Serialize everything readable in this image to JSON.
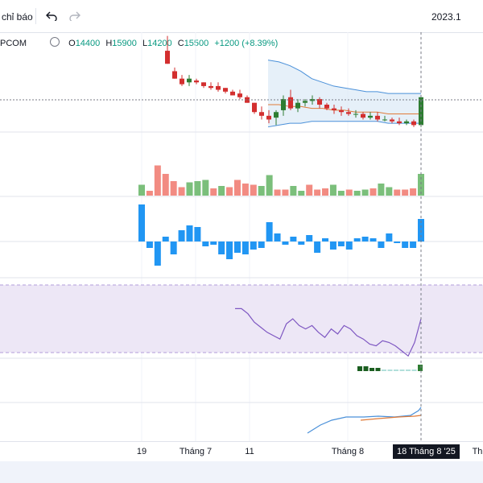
{
  "toolbar": {
    "indicators_label": "chỉ báo",
    "undo_icon": "undo-icon",
    "redo_icon": "redo-icon",
    "period_label": "2023.1"
  },
  "legend": {
    "symbol": "PCOM",
    "open_label": "O",
    "open_value": "14400",
    "high_label": "H",
    "high_value": "15900",
    "low_label": "L",
    "low_value": "14200",
    "close_label": "C",
    "close_value": "15500",
    "change": "+1200 (+8.39%)",
    "marker_icon": "circle-marker-icon"
  },
  "xaxis": {
    "ticks": [
      "19",
      "Tháng 7",
      "11",
      "Tháng 8",
      "Th"
    ],
    "crosshair_date": "18 Tháng 8 '25"
  },
  "colors": {
    "up": "#089981",
    "down": "#f23645",
    "up_candle": "#2e7d32",
    "down_candle": "#d32f2f",
    "vol_up": "#7bbf7b",
    "vol_down": "#f28b82",
    "macd_bar": "#2196f3",
    "rsi_line": "#7e57c2",
    "rsi_band": "#ede7f6",
    "bb_line": "#4a90d9",
    "bb_fill": "#dbe9f7",
    "ma_line": "#e07b39"
  },
  "chart_data": {
    "type": "candlestick",
    "title": "PCOM",
    "candles": [
      {
        "o": 16800,
        "h": 17600,
        "l": 16100,
        "c": 16100
      },
      {
        "o": 15700,
        "h": 15900,
        "l": 15300,
        "c": 15300
      },
      {
        "o": 15300,
        "h": 15500,
        "l": 14900,
        "c": 15000
      },
      {
        "o": 15100,
        "h": 15500,
        "l": 14900,
        "c": 15300
      },
      {
        "o": 15200,
        "h": 15300,
        "l": 15000,
        "c": 15100
      },
      {
        "o": 15100,
        "h": 15100,
        "l": 14800,
        "c": 14900
      },
      {
        "o": 14900,
        "h": 15100,
        "l": 14700,
        "c": 14800
      },
      {
        "o": 14900,
        "h": 15100,
        "l": 14600,
        "c": 14700
      },
      {
        "o": 14800,
        "h": 14800,
        "l": 14500,
        "c": 14600
      },
      {
        "o": 14600,
        "h": 14700,
        "l": 14400,
        "c": 14400
      },
      {
        "o": 14500,
        "h": 14700,
        "l": 14200,
        "c": 14300
      },
      {
        "o": 14300,
        "h": 14400,
        "l": 14000,
        "c": 14000
      },
      {
        "o": 14000,
        "h": 14000,
        "l": 13400,
        "c": 13500
      },
      {
        "o": 13500,
        "h": 13800,
        "l": 13100,
        "c": 13300
      },
      {
        "o": 13300,
        "h": 13600,
        "l": 12900,
        "c": 13100
      },
      {
        "o": 13200,
        "h": 13600,
        "l": 12800,
        "c": 13500
      },
      {
        "o": 13600,
        "h": 14400,
        "l": 13300,
        "c": 14200
      },
      {
        "o": 14300,
        "h": 14700,
        "l": 13600,
        "c": 13700
      },
      {
        "o": 13700,
        "h": 14200,
        "l": 13500,
        "c": 14000
      },
      {
        "o": 14000,
        "h": 14200,
        "l": 13800,
        "c": 14100
      },
      {
        "o": 14100,
        "h": 14400,
        "l": 13900,
        "c": 14200
      },
      {
        "o": 14200,
        "h": 14300,
        "l": 13700,
        "c": 13900
      },
      {
        "o": 13900,
        "h": 14000,
        "l": 13600,
        "c": 13700
      },
      {
        "o": 13700,
        "h": 13900,
        "l": 13400,
        "c": 13600
      },
      {
        "o": 13600,
        "h": 13800,
        "l": 13300,
        "c": 13500
      },
      {
        "o": 13500,
        "h": 13700,
        "l": 13300,
        "c": 13400
      },
      {
        "o": 13400,
        "h": 13600,
        "l": 13200,
        "c": 13400
      },
      {
        "o": 13400,
        "h": 13500,
        "l": 13100,
        "c": 13200
      },
      {
        "o": 13200,
        "h": 13500,
        "l": 13100,
        "c": 13300
      },
      {
        "o": 13300,
        "h": 13500,
        "l": 13000,
        "c": 13100
      },
      {
        "o": 13100,
        "h": 13300,
        "l": 13000,
        "c": 13100
      },
      {
        "o": 13100,
        "h": 13200,
        "l": 12900,
        "c": 13000
      },
      {
        "o": 13000,
        "h": 13200,
        "l": 12800,
        "c": 12900
      },
      {
        "o": 12900,
        "h": 13100,
        "l": 12800,
        "c": 13000
      },
      {
        "o": 13000,
        "h": 13100,
        "l": 12700,
        "c": 12800
      },
      {
        "o": 12800,
        "h": 14400,
        "l": 12700,
        "c": 14300
      }
    ],
    "volume": [
      {
        "v": 18,
        "up": true
      },
      {
        "v": 8,
        "up": false
      },
      {
        "v": 50,
        "up": false
      },
      {
        "v": 36,
        "up": false
      },
      {
        "v": 24,
        "up": false
      },
      {
        "v": 14,
        "up": false
      },
      {
        "v": 22,
        "up": true
      },
      {
        "v": 24,
        "up": true
      },
      {
        "v": 26,
        "up": true
      },
      {
        "v": 12,
        "up": false
      },
      {
        "v": 16,
        "up": true
      },
      {
        "v": 14,
        "up": false
      },
      {
        "v": 26,
        "up": false
      },
      {
        "v": 20,
        "up": false
      },
      {
        "v": 18,
        "up": false
      },
      {
        "v": 16,
        "up": true
      },
      {
        "v": 34,
        "up": true
      },
      {
        "v": 10,
        "up": false
      },
      {
        "v": 10,
        "up": false
      },
      {
        "v": 16,
        "up": true
      },
      {
        "v": 8,
        "up": true
      },
      {
        "v": 18,
        "up": false
      },
      {
        "v": 10,
        "up": false
      },
      {
        "v": 12,
        "up": false
      },
      {
        "v": 18,
        "up": true
      },
      {
        "v": 8,
        "up": true
      },
      {
        "v": 10,
        "up": false
      },
      {
        "v": 8,
        "up": true
      },
      {
        "v": 10,
        "up": true
      },
      {
        "v": 12,
        "up": false
      },
      {
        "v": 20,
        "up": true
      },
      {
        "v": 14,
        "up": true
      },
      {
        "v": 10,
        "up": false
      },
      {
        "v": 10,
        "up": false
      },
      {
        "v": 12,
        "up": false
      },
      {
        "v": 36,
        "up": true
      }
    ],
    "macd_hist": [
      46,
      -8,
      -30,
      6,
      -16,
      14,
      20,
      18,
      -6,
      -4,
      -16,
      -22,
      -14,
      -16,
      -10,
      -8,
      24,
      10,
      -4,
      6,
      -4,
      8,
      -14,
      4,
      -10,
      -6,
      -10,
      4,
      6,
      4,
      -8,
      10,
      -2,
      -8,
      -8,
      28
    ],
    "rsi": [
      56,
      56,
      53,
      48,
      45,
      42,
      40,
      38,
      47,
      50,
      46,
      44,
      46,
      42,
      39,
      44,
      41,
      46,
      44,
      40,
      38,
      35,
      34,
      37,
      36,
      34,
      31,
      28,
      36,
      50
    ],
    "bb_upper": [
      16300,
      16200,
      16000,
      15700,
      15300,
      15100,
      14900,
      14800,
      14700,
      14600,
      14600,
      14500,
      14500,
      14500,
      14500
    ],
    "bb_lower": [
      12700,
      12800,
      12900,
      12900,
      13000,
      13000,
      13000,
      13000,
      13000,
      13000,
      13000,
      12900,
      12900,
      12900,
      12900
    ],
    "ma": [
      13900,
      13900,
      13800,
      13800,
      13700,
      13700,
      13600,
      13600,
      13500,
      13500,
      13500,
      13400,
      13400,
      13400,
      13400
    ],
    "rsi_band": [
      30,
      70
    ]
  }
}
